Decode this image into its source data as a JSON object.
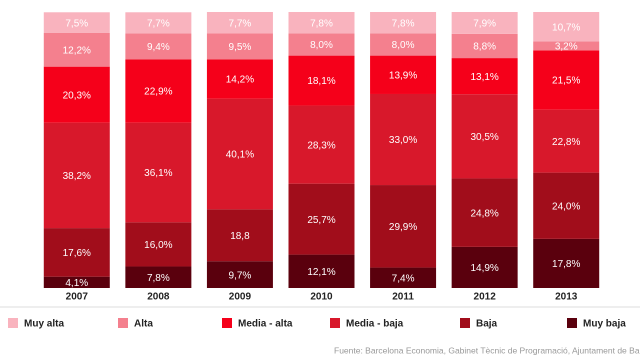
{
  "chart_data": {
    "type": "stacked-bar",
    "categories": [
      "2007",
      "2008",
      "2009",
      "2010",
      "2011",
      "2012",
      "2013"
    ],
    "series": [
      {
        "name": "Muy alta",
        "color": "#f9b3be",
        "values": [
          7.5,
          7.7,
          7.7,
          7.8,
          7.8,
          7.9,
          10.7
        ],
        "value_labels": [
          "7,5%",
          "7,7%",
          "7,7%",
          "7,8%",
          "7,8%",
          "7,9%",
          "10,7%"
        ]
      },
      {
        "name": "Alta",
        "color": "#f4808e",
        "values": [
          12.2,
          9.4,
          9.5,
          8.0,
          8.0,
          8.8,
          3.2
        ],
        "value_labels": [
          "12,2%",
          "9,4%",
          "9,5%",
          "8,0%",
          "8,0%",
          "8,8%",
          "3,2%"
        ]
      },
      {
        "name": "Media - alta",
        "color": "#f5001a",
        "values": [
          20.3,
          22.9,
          14.2,
          18.1,
          13.9,
          13.1,
          21.5
        ],
        "value_labels": [
          "20,3%",
          "22,9%",
          "14,2%",
          "18,1%",
          "13,9%",
          "13,1%",
          "21,5%"
        ]
      },
      {
        "name": "Media - baja",
        "color": "#d8182b",
        "values": [
          38.2,
          36.1,
          40.1,
          28.3,
          33.0,
          30.5,
          22.8
        ],
        "value_labels": [
          "38,2%",
          "36,1%",
          "40,1%",
          "28,3%",
          "33,0%",
          "30,5%",
          "22,8%"
        ]
      },
      {
        "name": "Baja",
        "color": "#a10d1b",
        "values": [
          17.6,
          16.0,
          18.8,
          25.7,
          29.9,
          24.8,
          24.0
        ],
        "value_labels": [
          "17,6%",
          "16,0%",
          "18,8",
          "25,7%",
          "29,9%",
          "24,8%",
          "24,0%"
        ]
      },
      {
        "name": "Muy baja",
        "color": "#5a000d",
        "values": [
          4.1,
          7.8,
          9.7,
          12.1,
          7.4,
          14.9,
          17.8
        ],
        "value_labels": [
          "4,1%",
          "7,8%",
          "9,7%",
          "12,1%",
          "7,4%",
          "14,9%",
          "17,8%"
        ]
      }
    ],
    "source": "Fuente: Barcelona Economia, Gabinet Tècnic de Programació, Ajuntament de Barce"
  }
}
